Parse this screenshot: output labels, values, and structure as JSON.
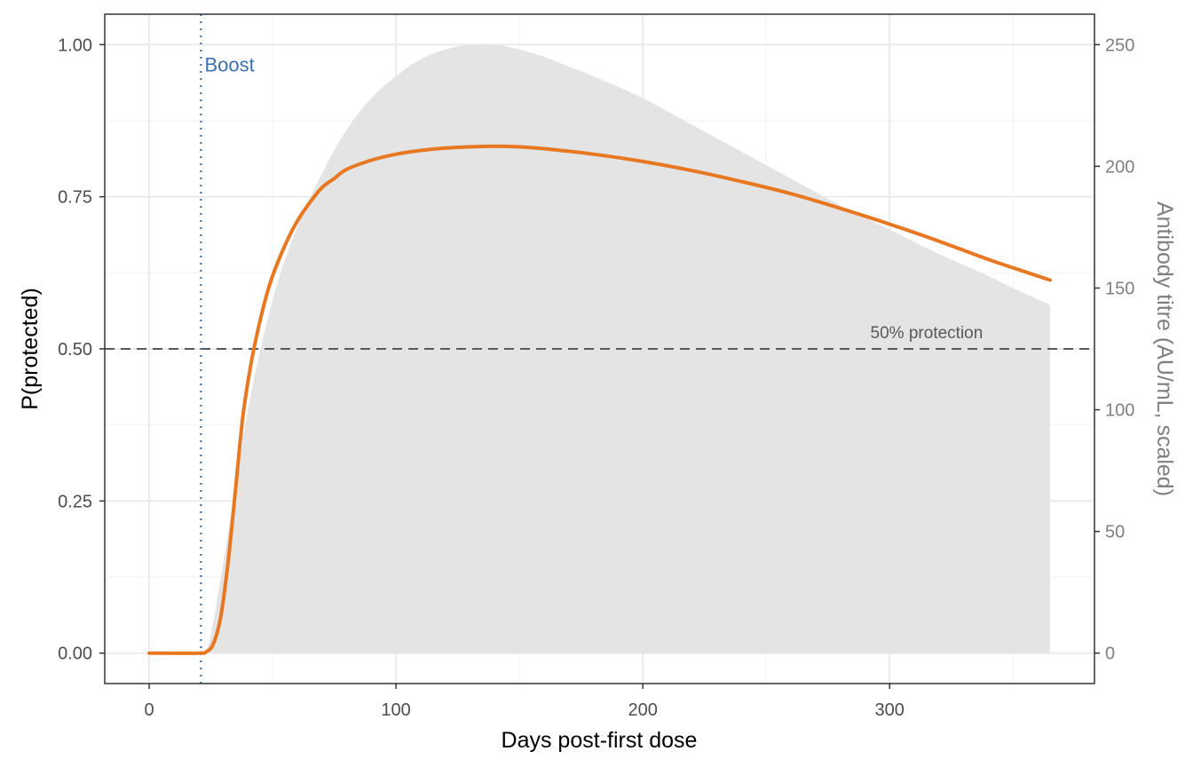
{
  "chart_data": {
    "type": "line",
    "title": "",
    "xlabel": "Days post-first dose",
    "ylabel": "P(protected)",
    "ylabel_right": "Antibody titre (AU/mL, scaled)",
    "xlim": [
      -18,
      383
    ],
    "ylim": [
      -0.05,
      1.05
    ],
    "ylim_right": [
      -12.5,
      262.5
    ],
    "x_ticks": [
      0,
      100,
      200,
      300
    ],
    "x_tick_labels": [
      "0",
      "100",
      "200",
      "300"
    ],
    "y_ticks": [
      0,
      0.25,
      0.5,
      0.75,
      1.0
    ],
    "y_tick_labels": [
      "0.00",
      "0.25",
      "0.50",
      "0.75",
      "1.00"
    ],
    "y_ticks_right": [
      0,
      50,
      100,
      150,
      200,
      250
    ],
    "y_tick_labels_right": [
      "0",
      "50",
      "100",
      "150",
      "200",
      "250"
    ],
    "grid": true,
    "colors": {
      "protection": "#e87722",
      "titre": "#e4e4e4",
      "boost": "#3b6fb0",
      "threshold": "#595959"
    },
    "series": [
      {
        "type": "area",
        "axis": "right",
        "x": [
          0,
          21,
          24,
          30,
          40,
          50,
          60,
          70,
          80,
          90,
          100,
          110,
          120,
          130,
          140,
          150,
          160,
          170,
          180,
          200,
          220,
          240,
          260,
          280,
          300,
          320,
          340,
          350,
          365
        ],
        "y": [
          0,
          0,
          3,
          37,
          100,
          145,
          175,
          197,
          215,
          228,
          237,
          244,
          248,
          250,
          250,
          248,
          245,
          241,
          237,
          228,
          217,
          206,
          195,
          184,
          174,
          164,
          155,
          150,
          143
        ]
      },
      {
        "type": "line",
        "axis": "left",
        "x": [
          0,
          20,
          23,
          26,
          29,
          32,
          35,
          38,
          41,
          44,
          47,
          50,
          55,
          60,
          65,
          70,
          75,
          80,
          90,
          100,
          110,
          120,
          130,
          140,
          150,
          160,
          180,
          200,
          220,
          240,
          260,
          280,
          300,
          320,
          340,
          365
        ],
        "y": [
          0,
          0,
          0.002,
          0.015,
          0.06,
          0.15,
          0.27,
          0.39,
          0.47,
          0.53,
          0.58,
          0.62,
          0.67,
          0.71,
          0.74,
          0.765,
          0.78,
          0.795,
          0.81,
          0.82,
          0.826,
          0.83,
          0.832,
          0.833,
          0.832,
          0.829,
          0.82,
          0.808,
          0.793,
          0.775,
          0.755,
          0.731,
          0.705,
          0.677,
          0.647,
          0.613
        ]
      }
    ],
    "annotations": {
      "boost": {
        "x": 21,
        "label": "Boost"
      },
      "threshold": {
        "y": 0.5,
        "label": "50% protection",
        "label_x": 315
      }
    }
  }
}
